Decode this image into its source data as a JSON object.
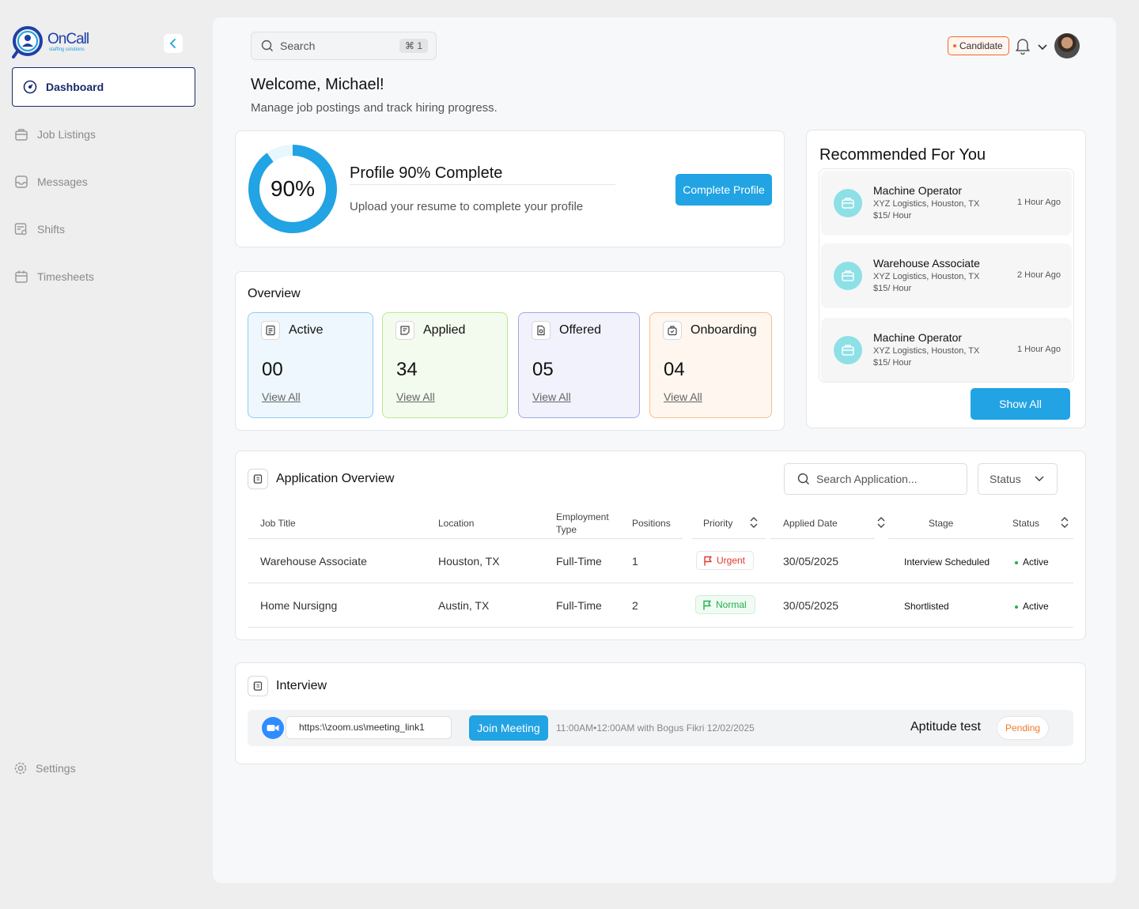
{
  "brand": {
    "name": "OnCall",
    "tagline": "staffing solutions"
  },
  "sidebar": {
    "items": [
      {
        "label": "Dashboard",
        "icon": "dashboard-icon",
        "active": true
      },
      {
        "label": "Job Listings",
        "icon": "briefcase-icon"
      },
      {
        "label": "Messages",
        "icon": "inbox-icon"
      },
      {
        "label": "Shifts",
        "icon": "shifts-icon"
      },
      {
        "label": "Timesheets",
        "icon": "calendar-icon"
      }
    ],
    "settings_label": "Settings"
  },
  "header": {
    "search_placeholder": "Search",
    "search_shortcut": "⌘ 1",
    "role_badge": "Candidate"
  },
  "welcome": {
    "title": "Welcome, Michael!",
    "subtitle": "Manage job postings and track hiring progress."
  },
  "profile": {
    "percent_label": "90%",
    "percent": 90,
    "title": "Profile 90% Complete",
    "subtitle": "Upload your resume to complete your profile",
    "button": "Complete Profile"
  },
  "overview": {
    "title": "Overview",
    "stats": [
      {
        "label": "Active",
        "value": "00",
        "link": "View All",
        "bg": "#eef7fd",
        "border": "#8fcdf0"
      },
      {
        "label": "Applied",
        "value": "34",
        "link": "View All",
        "bg": "#f3fbee",
        "border": "#b9e98e"
      },
      {
        "label": "Offered",
        "value": "05",
        "link": "View All",
        "bg": "#f1f2fc",
        "border": "#a2a8e3"
      },
      {
        "label": "Onboarding",
        "value": "04",
        "link": "View All",
        "bg": "#fef6ef",
        "border": "#f4c08f"
      }
    ]
  },
  "recommended": {
    "title": "Recommended For You",
    "items": [
      {
        "title": "Machine Operator",
        "location": "XYZ Logistics, Houston, TX",
        "pay": "$15/ Hour",
        "time": "1 Hour Ago"
      },
      {
        "title": "Warehouse Associate",
        "location": "XYZ Logistics, Houston, TX",
        "pay": "$15/ Hour",
        "time": "2 Hour Ago"
      },
      {
        "title": "Machine Operator",
        "location": "XYZ Logistics, Houston, TX",
        "pay": "$15/ Hour",
        "time": "1 Hour Ago"
      }
    ],
    "button": "Show All"
  },
  "applications": {
    "title": "Application Overview",
    "search_placeholder": "Search Application...",
    "status_filter": "Status",
    "columns": [
      "Job Title",
      "Location",
      "Employment Type",
      "Positions",
      "Priority",
      "Applied Date",
      "Stage",
      "Status"
    ],
    "rows": [
      {
        "job_title": "Warehouse Associate",
        "location": "Houston, TX",
        "employment_type": "Full-Time",
        "positions": "1",
        "priority": "Urgent",
        "applied_date": "30/05/2025",
        "stage": "Interview Scheduled",
        "status": "Active"
      },
      {
        "job_title": "Home Nursigng",
        "location": "Austin, TX",
        "employment_type": "Full-Time",
        "positions": "2",
        "priority": "Normal",
        "applied_date": "30/05/2025",
        "stage": "Shortlisted",
        "status": "Active"
      }
    ]
  },
  "interview": {
    "title": "Interview",
    "link": "https:\\\\zoom.us\\meeting_link1",
    "join_button": "Join Meeting",
    "meta": "11:00AM•12:00AM  with Bogus Fikri 12/02/2025",
    "test_name": "Aptitude test",
    "status": "Pending"
  }
}
